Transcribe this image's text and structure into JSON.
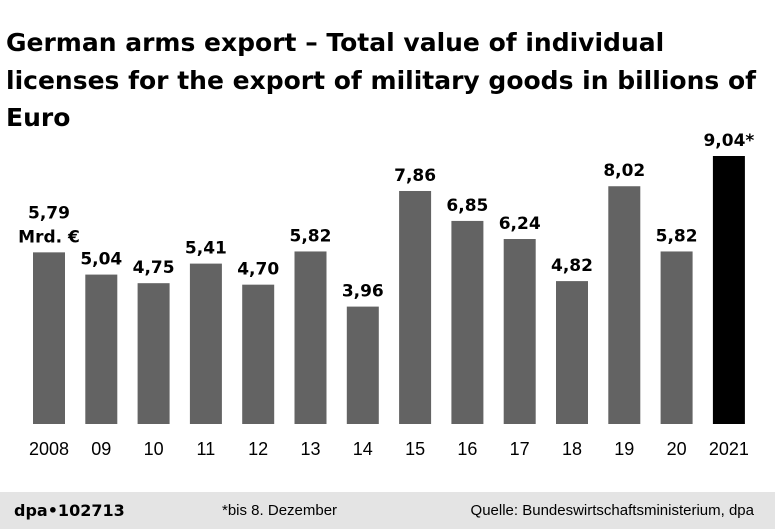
{
  "chart_data": {
    "type": "bar",
    "title": "German arms export – Total value of individual licenses for the export of military goods in billions of Euro",
    "categories": [
      "2008",
      "09",
      "10",
      "11",
      "12",
      "13",
      "14",
      "15",
      "16",
      "17",
      "18",
      "19",
      "20",
      "2021"
    ],
    "values": [
      5.79,
      5.04,
      4.75,
      5.41,
      4.7,
      5.82,
      3.96,
      7.86,
      6.85,
      6.24,
      4.82,
      8.02,
      5.82,
      9.04
    ],
    "value_labels": [
      "5,79",
      "5,04",
      "4,75",
      "5,41",
      "4,70",
      "5,82",
      "3,96",
      "7,86",
      "6,85",
      "6,24",
      "4,82",
      "8,02",
      "5,82",
      "9,04*"
    ],
    "unit_label": "Mrd. €",
    "ylim": [
      0,
      9.04
    ],
    "grid": false,
    "bar_color": "#636363",
    "highlight_color": "#000000",
    "highlight_index": 13
  },
  "footer": {
    "credit": "dpa•102713",
    "note": "*bis 8. Dezember",
    "source": "Quelle: Bundeswirtschaftsministerium, dpa"
  }
}
